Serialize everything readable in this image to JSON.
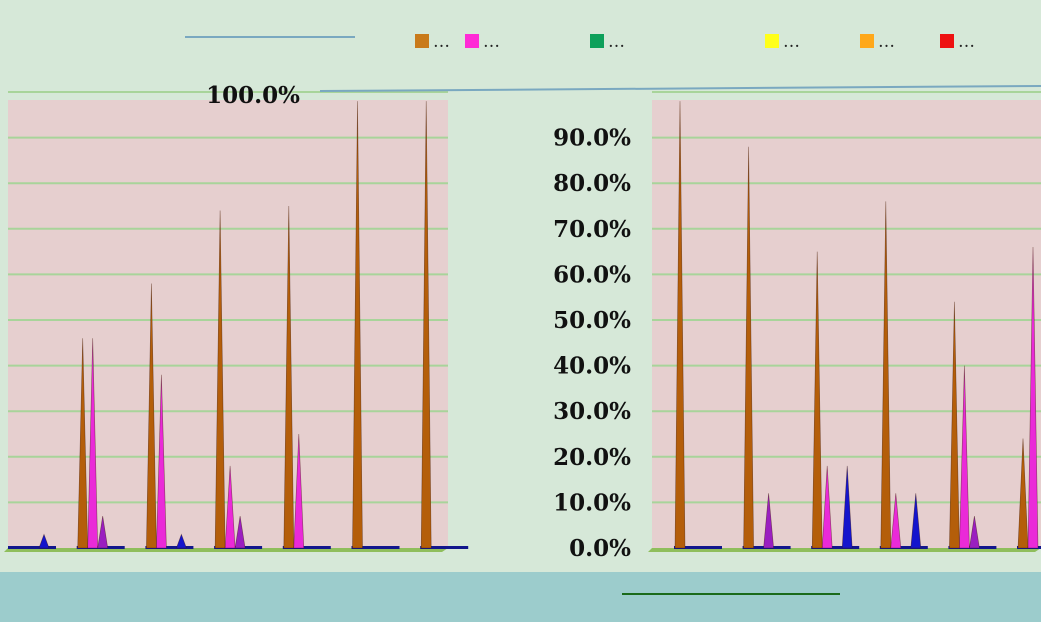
{
  "chart_data": {
    "type": "bar",
    "title": "",
    "ylim": [
      0,
      100
    ],
    "y_ticks": [
      "0.0%",
      "10.0%",
      "20.0%",
      "30.0%",
      "40.0%",
      "50.0%",
      "60.0%",
      "70.0%",
      "80.0%",
      "90.0%",
      "100.0%"
    ],
    "legend": {
      "position": "top",
      "entries": [
        {
          "label": "…",
          "color": "#c97a1a"
        },
        {
          "label": "…",
          "color": "#ff2bd6"
        },
        {
          "label": "…",
          "color": "#0da05a"
        },
        {
          "label": "…",
          "color": "#ffff1a"
        },
        {
          "label": "…",
          "color": "#ffa81a"
        },
        {
          "label": "…",
          "color": "#ee1111"
        }
      ]
    },
    "colors": {
      "s1": "#b45e0a",
      "s2": "#ea2ad8",
      "s3": "#9a1fc0",
      "s4": "#1414cc",
      "s5": "#12168c",
      "plot_bg": "#e6cfcf",
      "grid": "#a8d49a",
      "floor": "#8fbe5c"
    },
    "panels": [
      {
        "categories": [
          "",
          "",
          "",
          "",
          "",
          "",
          ""
        ],
        "series": [
          {
            "values": [
              0,
              46,
              58,
              74,
              75,
              98,
              98
            ]
          },
          {
            "values": [
              0,
              46,
              38,
              18,
              25,
              0,
              0
            ]
          },
          {
            "values": [
              0,
              7,
              0,
              7,
              0,
              0,
              0
            ]
          },
          {
            "values": [
              3,
              0,
              3,
              0,
              0,
              0,
              0
            ]
          },
          {
            "values": [
              0,
              0,
              0,
              0,
              0,
              0,
              0
            ]
          }
        ]
      },
      {
        "categories": [
          "",
          "",
          "",
          "",
          "",
          ""
        ],
        "series": [
          {
            "values": [
              98,
              88,
              65,
              76,
              54,
              24
            ]
          },
          {
            "values": [
              0,
              0,
              18,
              12,
              40,
              66
            ]
          },
          {
            "values": [
              0,
              12,
              0,
              0,
              7,
              0
            ]
          },
          {
            "values": [
              0,
              0,
              18,
              12,
              0,
              0
            ]
          },
          {
            "values": [
              0,
              0,
              0,
              0,
              0,
              0
            ]
          }
        ]
      }
    ]
  }
}
